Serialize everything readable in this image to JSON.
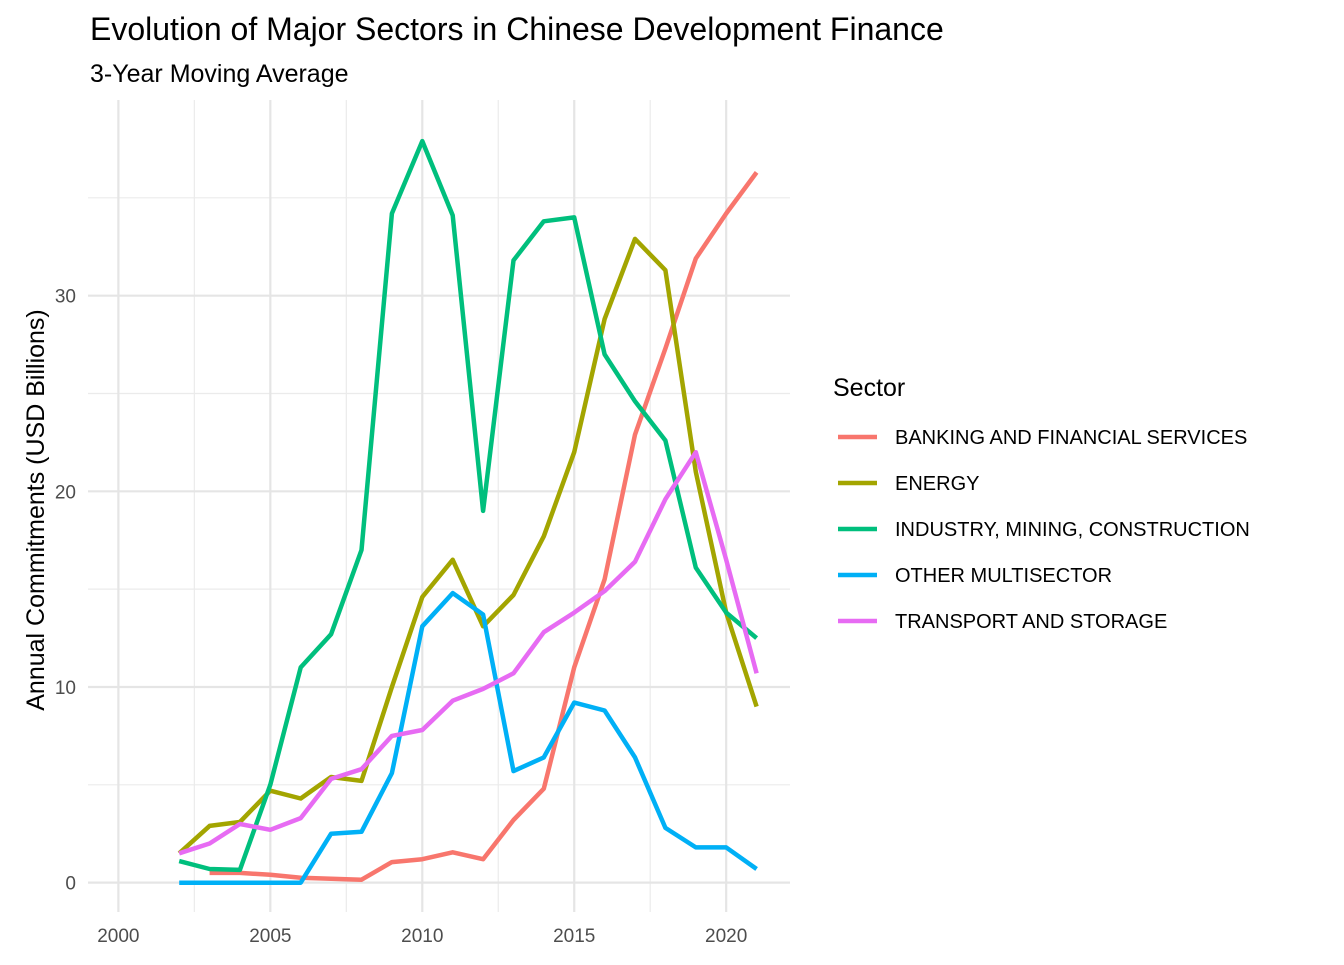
{
  "chart_data": {
    "type": "line",
    "title": "Evolution of Major Sectors in Chinese Development Finance",
    "subtitle": "3-Year Moving Average",
    "xlabel": "",
    "ylabel": "Annual Commitments (USD Billions)",
    "xlim": [
      1999.0,
      2022.1
    ],
    "ylim": [
      -1.5,
      40
    ],
    "x_ticks": [
      2000,
      2005,
      2010,
      2015,
      2020
    ],
    "y_ticks": [
      0,
      10,
      20,
      30
    ],
    "grid": true,
    "legend_title": "Sector",
    "legend_position": "right",
    "series": [
      {
        "name": "BANKING AND FINANCIAL SERVICES",
        "color": "#F8766D",
        "x": [
          2003,
          2004,
          2005,
          2006,
          2007,
          2008,
          2009,
          2010,
          2011,
          2012,
          2013,
          2014,
          2015,
          2016,
          2017,
          2018,
          2019,
          2020,
          2021
        ],
        "y": [
          0.5,
          0.5,
          0.4,
          0.25,
          0.2,
          0.15,
          1.05,
          1.2,
          1.55,
          1.2,
          3.2,
          4.8,
          11.0,
          15.5,
          22.9,
          27.3,
          31.9,
          34.2,
          36.3
        ]
      },
      {
        "name": "ENERGY",
        "color": "#A3A500",
        "x": [
          2002,
          2003,
          2004,
          2005,
          2006,
          2007,
          2008,
          2009,
          2010,
          2011,
          2012,
          2013,
          2014,
          2015,
          2016,
          2017,
          2018,
          2019,
          2020,
          2021
        ],
        "y": [
          1.5,
          2.9,
          3.1,
          4.7,
          4.3,
          5.4,
          5.2,
          10.0,
          14.6,
          16.5,
          13.1,
          14.7,
          17.7,
          22.0,
          28.8,
          32.9,
          31.3,
          21.0,
          13.8,
          9.0
        ]
      },
      {
        "name": "INDUSTRY, MINING, CONSTRUCTION",
        "color": "#00BF7D",
        "x": [
          2002,
          2003,
          2004,
          2005,
          2006,
          2007,
          2008,
          2009,
          2010,
          2011,
          2012,
          2013,
          2014,
          2015,
          2016,
          2017,
          2018,
          2019,
          2020,
          2021
        ],
        "y": [
          1.1,
          0.7,
          0.65,
          5.0,
          11.0,
          12.7,
          17.0,
          34.2,
          37.9,
          34.1,
          19.0,
          31.8,
          33.8,
          34.0,
          27.0,
          24.6,
          22.6,
          16.1,
          13.8,
          12.5
        ]
      },
      {
        "name": "OTHER MULTISECTOR",
        "color": "#00B0F6",
        "x": [
          2002,
          2003,
          2004,
          2005,
          2006,
          2007,
          2008,
          2009,
          2010,
          2011,
          2012,
          2013,
          2014,
          2015,
          2016,
          2017,
          2018,
          2019,
          2020,
          2021
        ],
        "y": [
          0.0,
          0.0,
          0.0,
          0.0,
          0.0,
          2.5,
          2.6,
          5.6,
          13.1,
          14.8,
          13.7,
          5.7,
          6.4,
          9.2,
          8.8,
          6.4,
          2.8,
          1.8,
          1.8,
          0.7
        ]
      },
      {
        "name": "TRANSPORT AND STORAGE",
        "color": "#E76BF3",
        "x": [
          2002,
          2003,
          2004,
          2005,
          2006,
          2007,
          2008,
          2009,
          2010,
          2011,
          2012,
          2013,
          2014,
          2015,
          2016,
          2017,
          2018,
          2019,
          2020,
          2021
        ],
        "y": [
          1.5,
          2.0,
          3.0,
          2.7,
          3.3,
          5.3,
          5.8,
          7.5,
          7.8,
          9.3,
          9.9,
          10.7,
          12.8,
          13.8,
          14.9,
          16.4,
          19.6,
          22.0,
          16.5,
          10.7
        ]
      }
    ]
  }
}
